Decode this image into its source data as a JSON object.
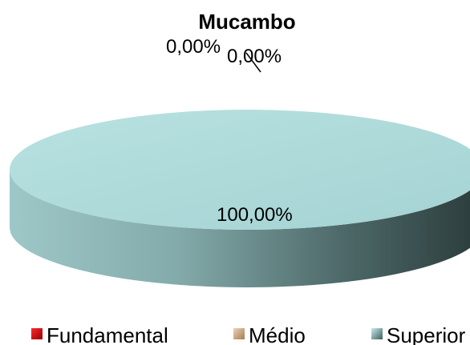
{
  "chart_data": {
    "type": "pie",
    "title": "Mucambo",
    "categories": [
      "Fundamental",
      "Médio",
      "Superior"
    ],
    "values": [
      0,
      0,
      100
    ],
    "data_labels": [
      "0,00%",
      "0,00%",
      "100,00%"
    ],
    "colors": [
      "#c00000",
      "#d9b38c",
      "#a6d6d6"
    ],
    "legend_position": "bottom",
    "style": "3d"
  }
}
